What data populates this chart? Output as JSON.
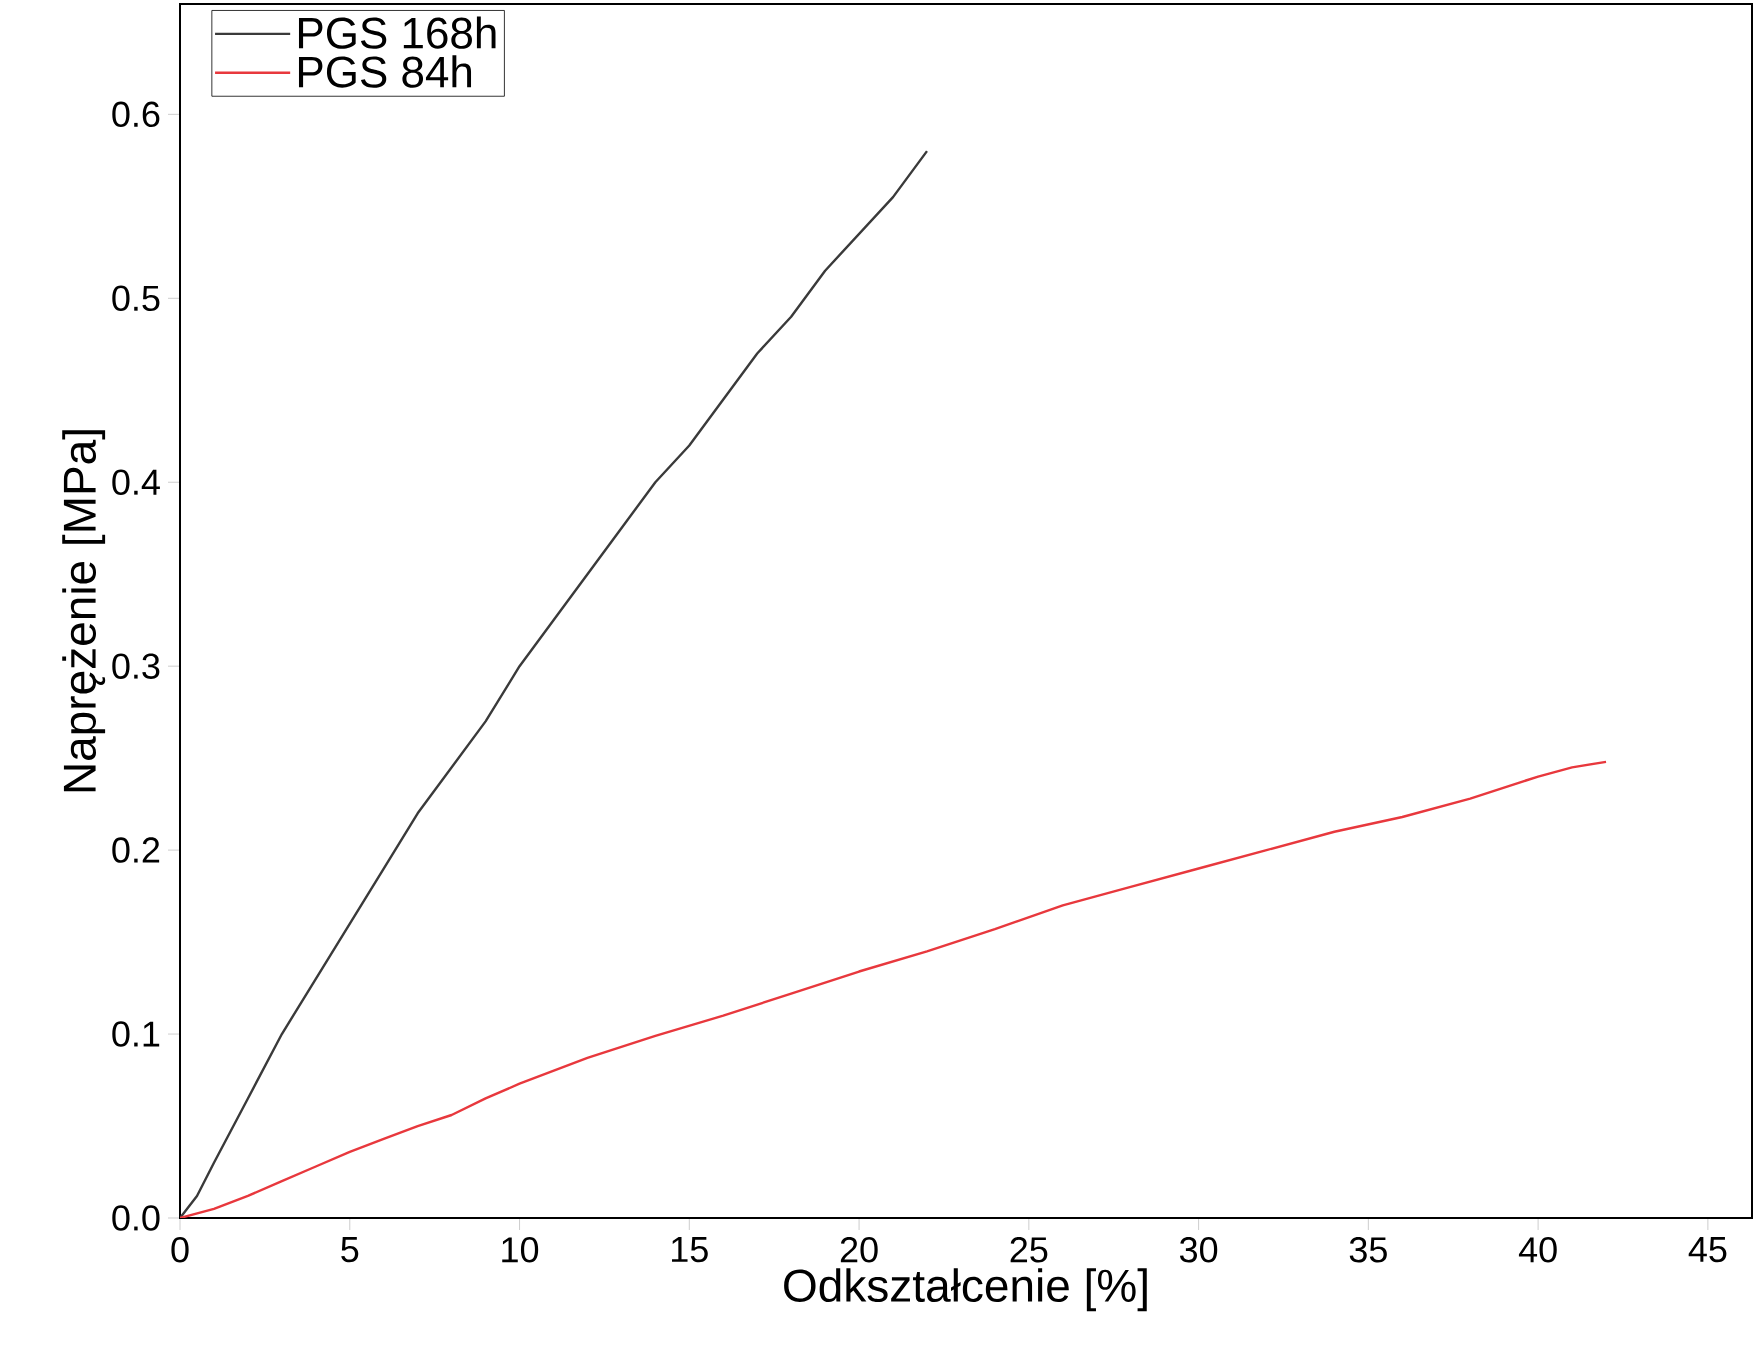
{
  "chart_data": {
    "type": "line",
    "xlabel": "Odkształcenie [%]",
    "ylabel": "Naprężenie [MPa]",
    "series": [
      {
        "name": "PGS 168h",
        "color": "#3a3a3a",
        "x": [
          0,
          0.5,
          1,
          2,
          3,
          4,
          5,
          6,
          7,
          8,
          9,
          10,
          11,
          12,
          13,
          14,
          15,
          16,
          17,
          18,
          19,
          20,
          21,
          22
        ],
        "values": [
          0,
          0.012,
          0.03,
          0.065,
          0.1,
          0.13,
          0.16,
          0.19,
          0.22,
          0.245,
          0.27,
          0.3,
          0.325,
          0.35,
          0.375,
          0.4,
          0.42,
          0.445,
          0.47,
          0.49,
          0.515,
          0.535,
          0.555,
          0.58
        ]
      },
      {
        "name": "PGS 84h",
        "color": "#e8383d",
        "x": [
          0,
          1,
          2,
          3,
          4,
          5,
          6,
          7,
          8,
          9,
          10,
          12,
          14,
          16,
          18,
          20,
          22,
          24,
          26,
          28,
          30,
          32,
          34,
          36,
          38,
          40,
          41,
          42
        ],
        "values": [
          0,
          0.005,
          0.012,
          0.02,
          0.028,
          0.036,
          0.043,
          0.05,
          0.056,
          0.065,
          0.073,
          0.087,
          0.099,
          0.11,
          0.122,
          0.134,
          0.145,
          0.157,
          0.17,
          0.18,
          0.19,
          0.2,
          0.21,
          0.218,
          0.228,
          0.24,
          0.245,
          0.248
        ]
      }
    ],
    "xlim": [
      0,
      46.3
    ],
    "ylim": [
      0,
      0.66
    ],
    "xticks": [
      0,
      5,
      10,
      15,
      20,
      25,
      30,
      35,
      40,
      45
    ],
    "yticks": [
      {
        "value": 0,
        "label": "0.0"
      },
      {
        "value": 0.1,
        "label": "0.1"
      },
      {
        "value": 0.2,
        "label": "0.2"
      },
      {
        "value": 0.3,
        "label": "0.3"
      },
      {
        "value": 0.4,
        "label": "0.4"
      },
      {
        "value": 0.5,
        "label": "0.5"
      },
      {
        "value": 0.6,
        "label": "0.6"
      }
    ],
    "legend": "top left",
    "marker": "none",
    "line_style": "solid",
    "grid": false
  }
}
